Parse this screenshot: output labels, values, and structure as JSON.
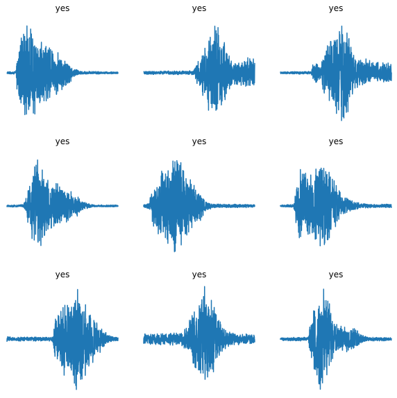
{
  "chart_data": [
    {
      "type": "line",
      "title": "yes",
      "color": "#1f77b4",
      "envelope": [
        [
          0.0,
          0.02
        ],
        [
          0.08,
          0.03
        ],
        [
          0.09,
          0.35
        ],
        [
          0.12,
          0.7
        ],
        [
          0.16,
          1.0
        ],
        [
          0.22,
          0.85
        ],
        [
          0.32,
          0.65
        ],
        [
          0.45,
          0.45
        ],
        [
          0.55,
          0.25
        ],
        [
          0.6,
          0.08
        ],
        [
          0.68,
          0.03
        ],
        [
          1.0,
          0.02
        ]
      ]
    },
    {
      "type": "line",
      "title": "yes",
      "color": "#1f77b4",
      "envelope": [
        [
          0.0,
          0.03
        ],
        [
          0.45,
          0.04
        ],
        [
          0.48,
          0.25
        ],
        [
          0.55,
          0.5
        ],
        [
          0.62,
          0.95
        ],
        [
          0.65,
          1.0
        ],
        [
          0.72,
          0.75
        ],
        [
          0.76,
          0.35
        ],
        [
          0.82,
          0.25
        ],
        [
          0.9,
          0.3
        ],
        [
          1.0,
          0.28
        ]
      ]
    },
    {
      "type": "line",
      "title": "yes",
      "color": "#1f77b4",
      "envelope": [
        [
          0.0,
          0.02
        ],
        [
          0.28,
          0.03
        ],
        [
          0.3,
          0.25
        ],
        [
          0.36,
          0.15
        ],
        [
          0.4,
          0.45
        ],
        [
          0.48,
          0.7
        ],
        [
          0.55,
          0.95
        ],
        [
          0.58,
          1.0
        ],
        [
          0.62,
          0.85
        ],
        [
          0.66,
          0.35
        ],
        [
          0.75,
          0.28
        ],
        [
          0.85,
          0.22
        ],
        [
          1.0,
          0.18
        ]
      ]
    },
    {
      "type": "line",
      "title": "yes",
      "color": "#1f77b4",
      "envelope": [
        [
          0.0,
          0.02
        ],
        [
          0.15,
          0.03
        ],
        [
          0.18,
          0.3
        ],
        [
          0.22,
          0.6
        ],
        [
          0.26,
          1.0
        ],
        [
          0.3,
          0.85
        ],
        [
          0.38,
          0.5
        ],
        [
          0.48,
          0.4
        ],
        [
          0.58,
          0.3
        ],
        [
          0.66,
          0.15
        ],
        [
          0.72,
          0.05
        ],
        [
          0.8,
          0.02
        ],
        [
          1.0,
          0.02
        ]
      ]
    },
    {
      "type": "line",
      "title": "yes",
      "color": "#1f77b4",
      "envelope": [
        [
          0.0,
          0.03
        ],
        [
          0.05,
          0.06
        ],
        [
          0.07,
          0.4
        ],
        [
          0.15,
          0.65
        ],
        [
          0.22,
          0.8
        ],
        [
          0.3,
          0.95
        ],
        [
          0.36,
          0.85
        ],
        [
          0.4,
          0.6
        ],
        [
          0.5,
          0.35
        ],
        [
          0.55,
          0.12
        ],
        [
          0.62,
          0.04
        ],
        [
          1.0,
          0.03
        ]
      ]
    },
    {
      "type": "line",
      "title": "yes",
      "color": "#1f77b4",
      "envelope": [
        [
          0.0,
          0.02
        ],
        [
          0.12,
          0.03
        ],
        [
          0.15,
          0.5
        ],
        [
          0.2,
          0.85
        ],
        [
          0.24,
          0.6
        ],
        [
          0.3,
          0.75
        ],
        [
          0.36,
          0.9
        ],
        [
          0.42,
          0.8
        ],
        [
          0.48,
          0.5
        ],
        [
          0.55,
          0.25
        ],
        [
          0.62,
          0.12
        ],
        [
          0.72,
          0.05
        ],
        [
          0.85,
          0.03
        ],
        [
          1.0,
          0.04
        ]
      ]
    },
    {
      "type": "line",
      "title": "yes",
      "color": "#1f77b4",
      "envelope": [
        [
          0.0,
          0.06
        ],
        [
          0.03,
          0.04
        ],
        [
          0.4,
          0.04
        ],
        [
          0.44,
          0.4
        ],
        [
          0.5,
          0.65
        ],
        [
          0.56,
          0.8
        ],
        [
          0.62,
          0.95
        ],
        [
          0.68,
          0.85
        ],
        [
          0.74,
          0.55
        ],
        [
          0.82,
          0.3
        ],
        [
          0.9,
          0.12
        ],
        [
          0.95,
          0.05
        ],
        [
          1.0,
          0.04
        ]
      ]
    },
    {
      "type": "line",
      "title": "yes",
      "color": "#1f77b4",
      "envelope": [
        [
          0.0,
          0.1
        ],
        [
          0.2,
          0.11
        ],
        [
          0.35,
          0.13
        ],
        [
          0.42,
          0.4
        ],
        [
          0.5,
          0.8
        ],
        [
          0.55,
          1.0
        ],
        [
          0.6,
          0.85
        ],
        [
          0.66,
          0.5
        ],
        [
          0.72,
          0.22
        ],
        [
          0.8,
          0.12
        ],
        [
          0.9,
          0.1
        ],
        [
          1.0,
          0.1
        ]
      ]
    },
    {
      "type": "line",
      "title": "yes",
      "color": "#1f77b4",
      "envelope": [
        [
          0.0,
          0.03
        ],
        [
          0.25,
          0.04
        ],
        [
          0.28,
          0.5
        ],
        [
          0.33,
          0.85
        ],
        [
          0.38,
          1.0
        ],
        [
          0.44,
          0.75
        ],
        [
          0.48,
          0.3
        ],
        [
          0.52,
          0.28
        ],
        [
          0.6,
          0.25
        ],
        [
          0.68,
          0.22
        ],
        [
          0.72,
          0.1
        ],
        [
          0.78,
          0.04
        ],
        [
          1.0,
          0.03
        ]
      ]
    }
  ]
}
